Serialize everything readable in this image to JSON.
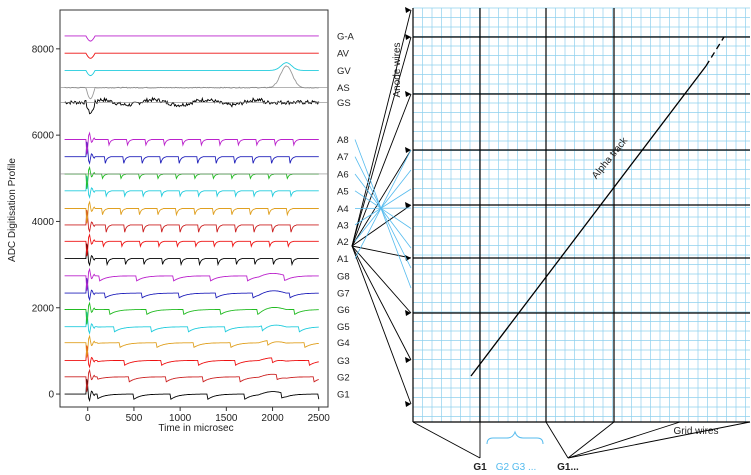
{
  "chart_data": {
    "type": "line",
    "ylabel": "ADC Digitisation Profile",
    "xlabel": "Time in microsec",
    "xticks": [
      0,
      500,
      1000,
      1500,
      2000,
      2500
    ],
    "yticks": [
      0,
      2000,
      4000,
      6000,
      8000
    ],
    "xlim": [
      -300,
      2600
    ],
    "ylim": [
      -300,
      8900
    ],
    "grid": false,
    "series": [
      {
        "name": "G1",
        "baseline": 0,
        "color": "#000000"
      },
      {
        "name": "G2",
        "baseline": 400,
        "color": "#cc2222"
      },
      {
        "name": "G3",
        "baseline": 780,
        "color": "#ee1111"
      },
      {
        "name": "G4",
        "baseline": 1190,
        "color": "#e0a020"
      },
      {
        "name": "G5",
        "baseline": 1560,
        "color": "#22ccdd"
      },
      {
        "name": "G6",
        "baseline": 1960,
        "color": "#22bb22"
      },
      {
        "name": "G7",
        "baseline": 2340,
        "color": "#2222bb"
      },
      {
        "name": "G8",
        "baseline": 2740,
        "color": "#bb22cc"
      },
      {
        "name": "A1",
        "baseline": 3140,
        "color": "#000000"
      },
      {
        "name": "A2",
        "baseline": 3540,
        "color": "#ee1111"
      },
      {
        "name": "A3",
        "baseline": 3920,
        "color": "#cc2222"
      },
      {
        "name": "A4",
        "baseline": 4300,
        "color": "#e0a020"
      },
      {
        "name": "A5",
        "baseline": 4710,
        "color": "#22ccdd"
      },
      {
        "name": "A6",
        "baseline": 5100,
        "color": "#22bb22"
      },
      {
        "name": "A7",
        "baseline": 5500,
        "color": "#2222bb"
      },
      {
        "name": "A8",
        "baseline": 5900,
        "color": "#bb22cc"
      },
      {
        "name": "GS",
        "baseline": 6760,
        "color": "#000000"
      },
      {
        "name": "AS",
        "baseline": 7100,
        "color": "#999999"
      },
      {
        "name": "GV",
        "baseline": 7500,
        "color": "#22ccdd"
      },
      {
        "name": "AV",
        "baseline": 7900,
        "color": "#ee1111"
      },
      {
        "name": "G-A",
        "baseline": 8300,
        "color": "#bb22cc"
      }
    ]
  },
  "diagram": {
    "y_axis_label": "Anode wires",
    "x_axis_label": "Grid wires",
    "track_label": "Alpha track",
    "bottom_labels": [
      "G1",
      "G2 G3 ...",
      "G1..."
    ],
    "colors": {
      "grid_light": "#8fd0ee",
      "grid_dark": "#000000",
      "track": "#000000",
      "cyan_text": "#55bbee"
    }
  }
}
